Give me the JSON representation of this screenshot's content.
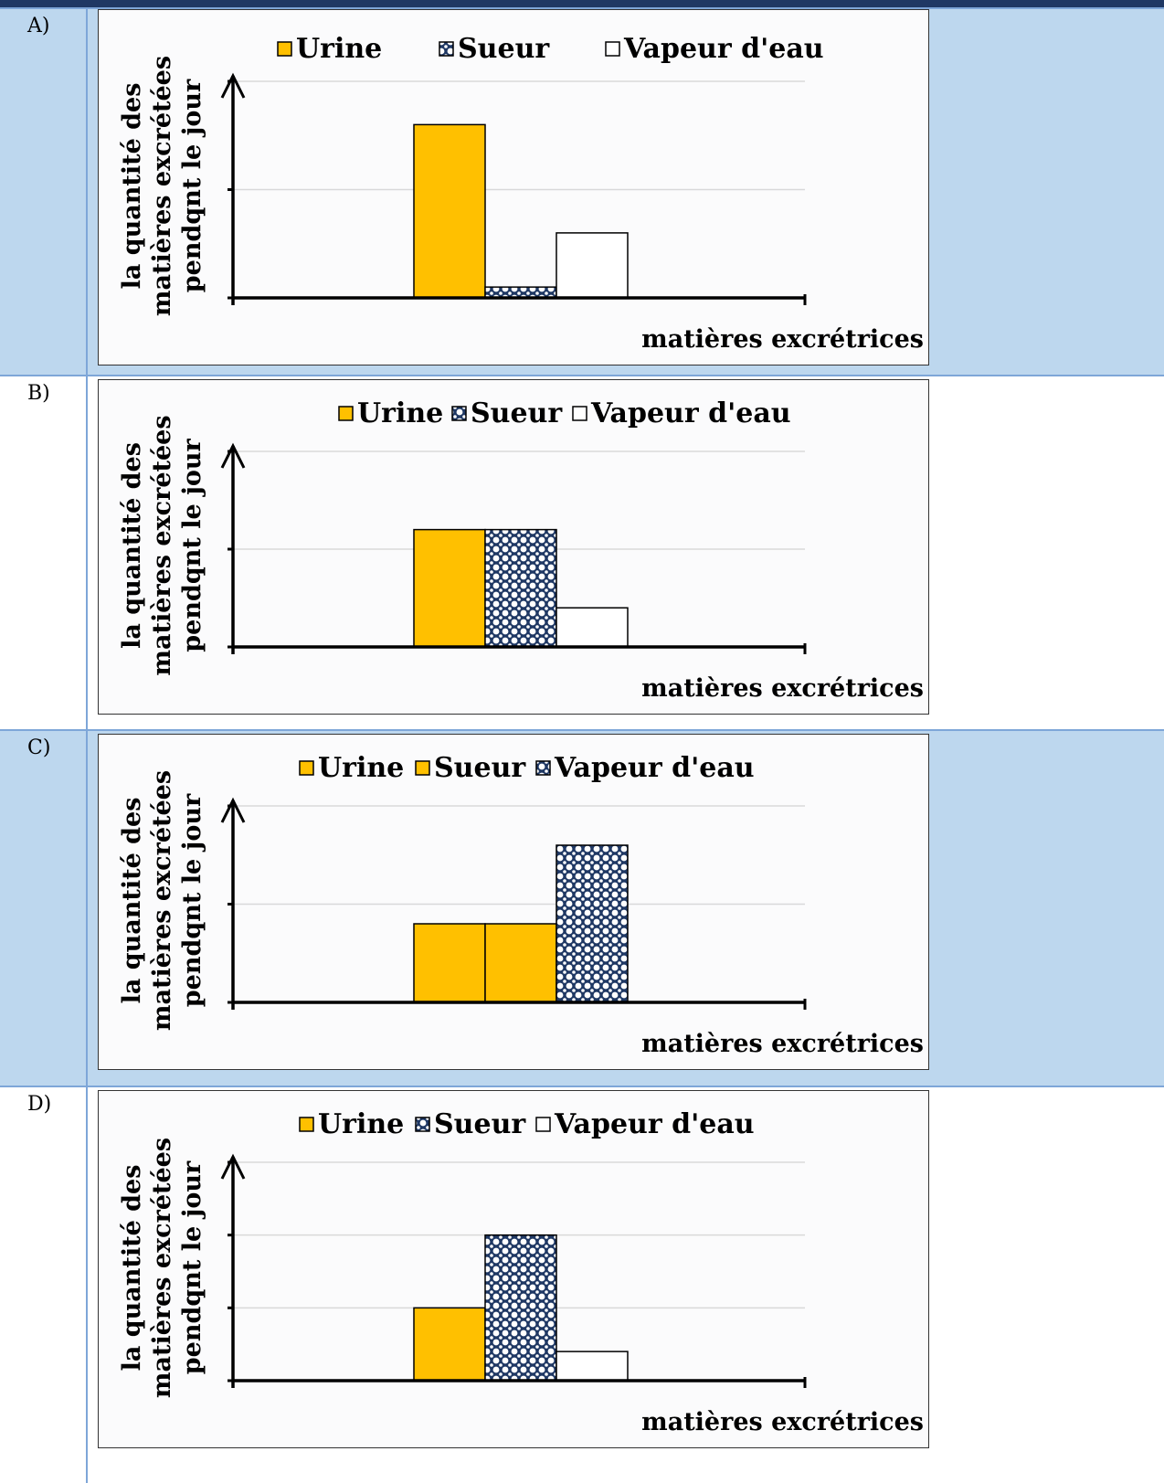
{
  "options": [
    {
      "label": "A)",
      "chart_data": {
        "type": "bar",
        "categories": [
          ""
        ],
        "series": [
          {
            "name": "Urine",
            "values": [
              3.2
            ],
            "color": "#ffc000",
            "pattern": "solid"
          },
          {
            "name": "Sueur",
            "values": [
              0.2
            ],
            "color": "#1f3864",
            "pattern": "dots"
          },
          {
            "name": "Vapeur d'eau",
            "values": [
              1.2
            ],
            "color": "#ffffff",
            "pattern": "solid"
          }
        ],
        "legend_markers": [
          {
            "color": "#ffc000",
            "pattern": "solid"
          },
          {
            "color": "#1f3864",
            "pattern": "dots"
          },
          {
            "color": "#ffffff",
            "pattern": "solid"
          }
        ],
        "ylabel_lines": [
          "la quantité des",
          "matières excrétées",
          "pendqnt le jour"
        ],
        "xlabel": "matières excrétrices",
        "ylim": [
          0,
          4
        ],
        "gridlines": [
          0,
          2,
          4
        ],
        "grid": true,
        "legend_position": "top"
      }
    },
    {
      "label": "B)",
      "chart_data": {
        "type": "bar",
        "categories": [
          ""
        ],
        "series": [
          {
            "name": "Urine",
            "values": [
              2.4
            ],
            "color": "#ffc000",
            "pattern": "solid"
          },
          {
            "name": "Sueur",
            "values": [
              2.4
            ],
            "color": "#1f3864",
            "pattern": "dots"
          },
          {
            "name": "Vapeur d'eau",
            "values": [
              0.8
            ],
            "color": "#ffffff",
            "pattern": "solid"
          }
        ],
        "legend_markers": [
          {
            "color": "#ffc000",
            "pattern": "solid"
          },
          {
            "color": "#1f3864",
            "pattern": "dots"
          },
          {
            "color": "#ffffff",
            "pattern": "solid"
          }
        ],
        "ylabel_lines": [
          "la quantité des",
          "matières excrétées",
          "pendqnt le jour"
        ],
        "xlabel": "matières excrétrices",
        "ylim": [
          0,
          4
        ],
        "gridlines": [
          0,
          2,
          4
        ],
        "grid": true,
        "legend_position": "top"
      }
    },
    {
      "label": "C)",
      "chart_data": {
        "type": "bar",
        "categories": [
          ""
        ],
        "series": [
          {
            "name": "Urine",
            "values": [
              1.6
            ],
            "color": "#ffc000",
            "pattern": "solid"
          },
          {
            "name": "Sueur",
            "values": [
              1.6
            ],
            "color": "#ffc000",
            "pattern": "solid"
          },
          {
            "name": "Vapeur d'eau",
            "values": [
              3.2
            ],
            "color": "#1f3864",
            "pattern": "dots"
          }
        ],
        "legend_markers": [
          {
            "color": "#ffc000",
            "pattern": "solid"
          },
          {
            "color": "#ffc000",
            "pattern": "solid"
          },
          {
            "color": "#1f3864",
            "pattern": "dots"
          }
        ],
        "ylabel_lines": [
          "la quantité des",
          "matières excrétées",
          "pendqnt le jour"
        ],
        "xlabel": "matières excrétrices",
        "ylim": [
          0,
          4
        ],
        "gridlines": [
          0,
          2,
          4
        ],
        "grid": true,
        "legend_position": "top"
      }
    },
    {
      "label": "D)",
      "chart_data": {
        "type": "bar",
        "categories": [
          ""
        ],
        "series": [
          {
            "name": "Urine",
            "values": [
              1.0
            ],
            "color": "#ffc000",
            "pattern": "solid"
          },
          {
            "name": "Sueur",
            "values": [
              2.0
            ],
            "color": "#1f3864",
            "pattern": "dots"
          },
          {
            "name": "Vapeur d'eau",
            "values": [
              0.4
            ],
            "color": "#ffffff",
            "pattern": "solid"
          }
        ],
        "legend_markers": [
          {
            "color": "#ffc000",
            "pattern": "solid"
          },
          {
            "color": "#1f3864",
            "pattern": "dots"
          },
          {
            "color": "#ffffff",
            "pattern": "solid"
          }
        ],
        "ylabel_lines": [
          "la quantité des",
          "matières excrétées",
          "pendqnt le jour"
        ],
        "xlabel": "matières excrétrices",
        "ylim": [
          0,
          3
        ],
        "gridlines": [
          0,
          1,
          2,
          3
        ],
        "grid": true,
        "legend_position": "top"
      }
    }
  ]
}
